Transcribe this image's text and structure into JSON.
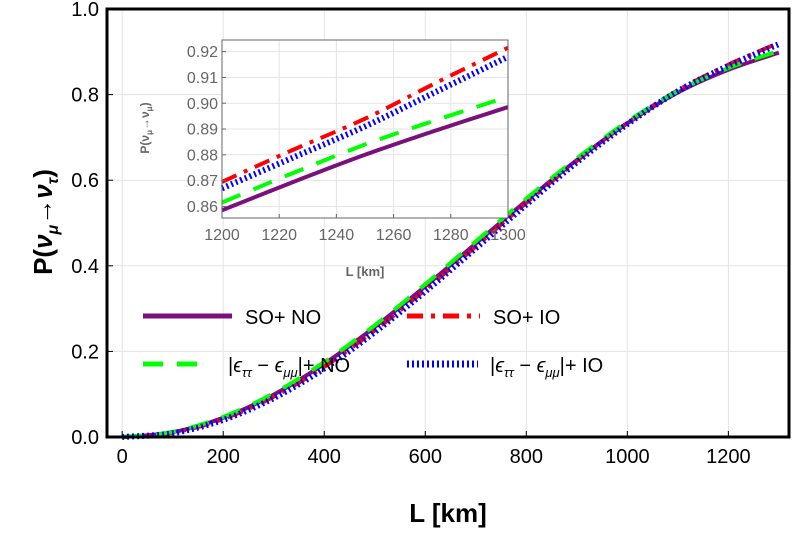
{
  "chart_data": [
    {
      "type": "line",
      "xlabel": "L [km]",
      "ylabel_main": "P(",
      "ylabel": "P(ν_μ→ν_τ)",
      "xlim": [
        -30,
        1320
      ],
      "ylim": [
        0,
        1.0
      ],
      "xticks": [
        "0",
        "200",
        "400",
        "600",
        "800",
        "1000",
        "1200"
      ],
      "yticks": [
        "0.0",
        "0.2",
        "0.4",
        "0.6",
        "0.8",
        "1.0"
      ],
      "grid": true,
      "legend_placement": "center-bottom",
      "x": [
        0,
        100,
        200,
        300,
        400,
        500,
        600,
        700,
        800,
        900,
        1000,
        1100,
        1200,
        1300
      ],
      "series": [
        {
          "name": "SO+ NO",
          "color": "#7b0f7b",
          "style": "solid",
          "values": [
            0,
            0.011,
            0.045,
            0.099,
            0.171,
            0.257,
            0.352,
            0.452,
            0.552,
            0.647,
            0.733,
            0.805,
            0.858,
            0.898
          ]
        },
        {
          "name": "SO+ IO",
          "color": "#ff0000",
          "style": "dashdot",
          "values": [
            0,
            0.01,
            0.042,
            0.094,
            0.164,
            0.249,
            0.344,
            0.445,
            0.547,
            0.645,
            0.734,
            0.81,
            0.87,
            0.921
          ]
        },
        {
          "name": "|ϵ_ττ − ϵ_μμ|+ NO",
          "color": "#00ff00",
          "style": "dashed",
          "values": [
            0,
            0.012,
            0.047,
            0.102,
            0.175,
            0.261,
            0.357,
            0.457,
            0.557,
            0.651,
            0.737,
            0.808,
            0.862,
            0.902
          ]
        },
        {
          "name": "|ϵ_ττ − ϵ_μμ|+ IO",
          "color": "#0000ff",
          "style": "dotted",
          "values": [
            0,
            0.009,
            0.04,
            0.091,
            0.16,
            0.245,
            0.34,
            0.441,
            0.543,
            0.642,
            0.731,
            0.808,
            0.867,
            0.918
          ]
        }
      ]
    },
    {
      "type": "line",
      "xlabel": "L [km]",
      "ylabel": "P(ν_μ→ν_μ)",
      "xlim": [
        1200,
        1300
      ],
      "ylim": [
        0.8555,
        0.9245
      ],
      "xticks": [
        "1200",
        "1220",
        "1240",
        "1260",
        "1280",
        "1300"
      ],
      "yticks": [
        "0.86",
        "0.87",
        "0.88",
        "0.89",
        "0.90",
        "0.91",
        "0.92"
      ],
      "grid": true,
      "x": [
        1200,
        1225,
        1250,
        1275,
        1300
      ],
      "series": [
        {
          "color": "#7b0f7b",
          "style": "solid",
          "values": [
            0.8585,
            0.8695,
            0.88,
            0.8895,
            0.8985
          ]
        },
        {
          "color": "#ff0000",
          "style": "dashdot",
          "values": [
            0.8695,
            0.882,
            0.894,
            0.908,
            0.9215
          ]
        },
        {
          "color": "#00ff00",
          "style": "dashed",
          "values": [
            0.8615,
            0.873,
            0.884,
            0.8935,
            0.9025
          ]
        },
        {
          "color": "#0000ff",
          "style": "dotted",
          "values": [
            0.867,
            0.879,
            0.891,
            0.9045,
            0.918
          ]
        }
      ]
    }
  ]
}
